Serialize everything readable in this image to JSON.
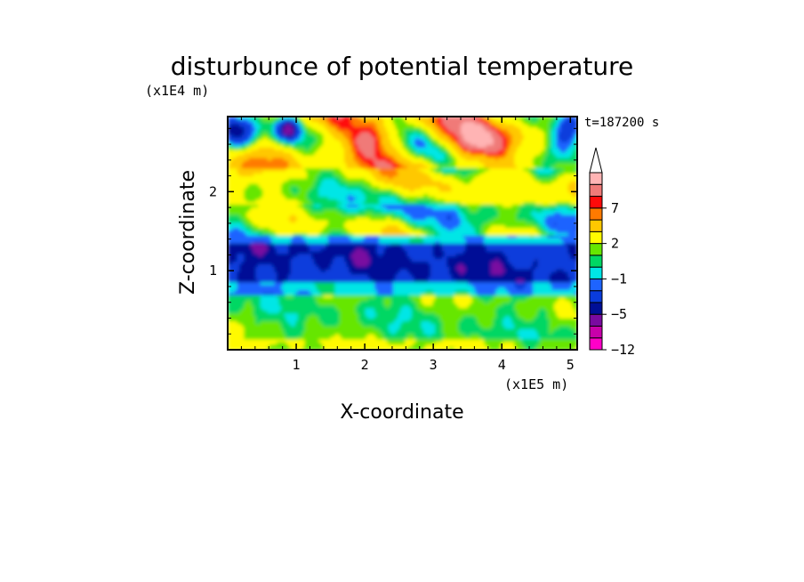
{
  "chart_data": {
    "type": "heatmap",
    "title": "disturbunce of potential temperature",
    "time_label": "t=187200 s",
    "xlabel": "X-coordinate",
    "ylabel": "Z-coordinate",
    "x_unit": "(x1E5 m)",
    "y_unit": "(x1E4 m)",
    "xlim": [
      0,
      5.1
    ],
    "ylim": [
      0,
      2.95
    ],
    "xticks": [
      1,
      2,
      3,
      4,
      5
    ],
    "yticks": [
      1,
      2
    ],
    "colorbar": {
      "labels": [
        "7",
        "2",
        "−1",
        "−5",
        "−12"
      ],
      "label_levels": [
        7,
        2,
        -1,
        -5,
        -12
      ],
      "levels": [
        -12,
        -10,
        -8,
        -5,
        -4,
        -2,
        -1,
        0,
        1,
        2,
        4,
        6,
        7,
        8,
        10
      ],
      "colors": [
        "#ff00c8",
        "#c800aa",
        "#7a0aa0",
        "#000f96",
        "#0a3cdc",
        "#1e64ff",
        "#00e6e6",
        "#00d764",
        "#66e600",
        "#fffa00",
        "#ffc800",
        "#ff7a00",
        "#ff0a0a",
        "#f07a78",
        "#ffb4b4"
      ],
      "extend": "max"
    },
    "field_bands": [
      {
        "z": [
          0.0,
          0.12
        ],
        "level": 2
      },
      {
        "z": [
          0.12,
          0.7
        ],
        "level": 1
      },
      {
        "z": [
          0.7,
          0.85
        ],
        "level": -1
      },
      {
        "z": [
          0.85,
          1.35
        ],
        "level": -4
      },
      {
        "z": [
          1.35,
          1.45
        ],
        "level": -1
      },
      {
        "z": [
          1.45,
          1.85
        ],
        "level": 1
      },
      {
        "z": [
          1.85,
          2.3
        ],
        "level": 2
      },
      {
        "z": [
          2.3,
          2.95
        ],
        "level": 4
      }
    ]
  }
}
